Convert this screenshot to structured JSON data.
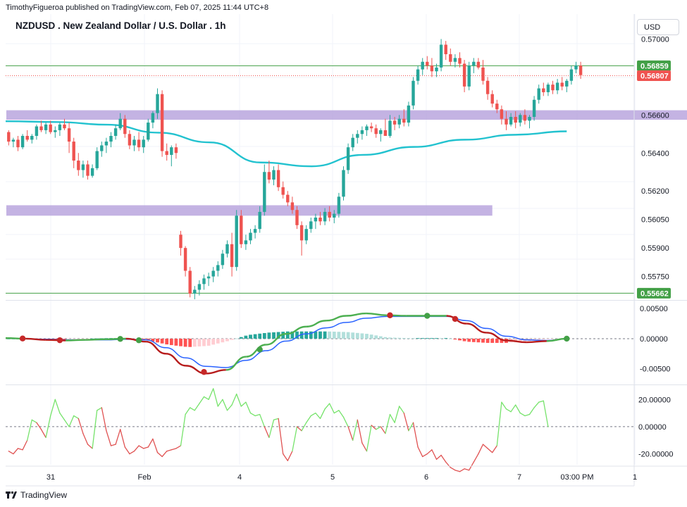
{
  "header": {
    "publisher": "TimothyFigueroa published on TradingView.com, Feb 07, 2025 11:44 UTC+8",
    "symbol_title": "NZDUSD . New Zealand Dollar / U.S. Dollar . 1h",
    "currency": "USD"
  },
  "footer": {
    "brand": "TradingView"
  },
  "colors": {
    "up": "#26a69a",
    "down": "#ef5350",
    "ma": "#22c2cf",
    "zone": "#b39ddb",
    "green_line": "#43a047",
    "red_line": "#ef5350",
    "macd_fast": "#b71c1c",
    "macd_slow": "#2962ff",
    "cross_red": "#c62828",
    "cross_green": "#43a047",
    "osc_up": "#76e36b",
    "osc_down": "#e05252",
    "axis_text": "#131722"
  },
  "chart_data": [
    {
      "type": "candlestick",
      "ylim": [
        0.5563,
        0.5702
      ],
      "x_ticks": [
        "31",
        "Feb",
        "4",
        "5",
        "6",
        "7",
        "03:00 PM",
        "1"
      ],
      "y_ticks": [
        "0.57000",
        "0.56600",
        "0.56400",
        "0.56200",
        "0.56050",
        "0.55900",
        "0.55750"
      ],
      "price_labels": [
        {
          "value": 0.56859,
          "text": "0.56859",
          "color": "#43a047"
        },
        {
          "value": 0.56807,
          "text": "0.56807",
          "color": "#ef5350"
        },
        {
          "value": 0.55662,
          "text": "0.55662",
          "color": "#43a047"
        }
      ],
      "horizontal_lines": [
        {
          "value": 0.56859,
          "style": "solid",
          "color": "#43a047"
        },
        {
          "value": 0.56807,
          "style": "dotted",
          "color": "#ef5350"
        },
        {
          "value": 0.55662,
          "style": "solid",
          "color": "#43a047"
        }
      ],
      "zones": [
        {
          "top": 0.56625,
          "bottom": 0.56575,
          "x_start": 0,
          "x_end": 157
        },
        {
          "top": 0.56125,
          "bottom": 0.5607,
          "x_start": 0,
          "x_end": 104
        }
      ],
      "moving_average": [
        0.56567,
        0.56563,
        0.56549,
        0.56507,
        0.56456,
        0.5635,
        0.5633,
        0.5639,
        0.56432,
        0.5647,
        0.56496,
        0.56514
      ],
      "candles": [
        [
          0.5651,
          0.5652,
          0.5644,
          0.5646
        ],
        [
          0.5646,
          0.5648,
          0.5643,
          0.5647
        ],
        [
          0.5647,
          0.5649,
          0.5641,
          0.5643
        ],
        [
          0.5643,
          0.565,
          0.5642,
          0.5649
        ],
        [
          0.5649,
          0.5652,
          0.5646,
          0.5647
        ],
        [
          0.5647,
          0.565,
          0.5645,
          0.5649
        ],
        [
          0.5649,
          0.5655,
          0.5647,
          0.5654
        ],
        [
          0.5654,
          0.5657,
          0.5651,
          0.5652
        ],
        [
          0.5652,
          0.5656,
          0.565,
          0.5655
        ],
        [
          0.5655,
          0.5657,
          0.565,
          0.5651
        ],
        [
          0.5651,
          0.5654,
          0.5648,
          0.5652
        ],
        [
          0.5652,
          0.5656,
          0.5649,
          0.5655
        ],
        [
          0.5655,
          0.5658,
          0.5652,
          0.5653
        ],
        [
          0.5653,
          0.5656,
          0.564,
          0.5646
        ],
        [
          0.5646,
          0.5648,
          0.5632,
          0.5636
        ],
        [
          0.5636,
          0.564,
          0.5628,
          0.5631
        ],
        [
          0.5631,
          0.5636,
          0.5627,
          0.5634
        ],
        [
          0.5634,
          0.5636,
          0.5626,
          0.5628
        ],
        [
          0.5628,
          0.5634,
          0.5627,
          0.5632
        ],
        [
          0.5632,
          0.5643,
          0.5631,
          0.5641
        ],
        [
          0.5641,
          0.5646,
          0.5638,
          0.5644
        ],
        [
          0.5644,
          0.5648,
          0.564,
          0.5646
        ],
        [
          0.5646,
          0.5651,
          0.5643,
          0.5649
        ],
        [
          0.5649,
          0.5655,
          0.5647,
          0.5653
        ],
        [
          0.5653,
          0.5661,
          0.5652,
          0.5658
        ],
        [
          0.5658,
          0.566,
          0.5648,
          0.565
        ],
        [
          0.565,
          0.5652,
          0.5642,
          0.5644
        ],
        [
          0.5644,
          0.5649,
          0.5641,
          0.5647
        ],
        [
          0.5647,
          0.5651,
          0.5641,
          0.5643
        ],
        [
          0.5643,
          0.5649,
          0.564,
          0.5647
        ],
        [
          0.5647,
          0.5658,
          0.5646,
          0.5656
        ],
        [
          0.5656,
          0.5662,
          0.5653,
          0.5661
        ],
        [
          0.5661,
          0.5674,
          0.5658,
          0.5671
        ],
        [
          0.5671,
          0.5673,
          0.5638,
          0.5641
        ],
        [
          0.5641,
          0.5645,
          0.5636,
          0.5639
        ],
        [
          0.5639,
          0.5644,
          0.5633,
          0.5643
        ],
        [
          0.5643,
          0.5645,
          0.5637,
          0.564
        ],
        [
          0.5597,
          0.5599,
          0.5586,
          0.559
        ],
        [
          0.559,
          0.5591,
          0.5575,
          0.5578
        ],
        [
          0.5578,
          0.558,
          0.5564,
          0.5566
        ],
        [
          0.5566,
          0.557,
          0.5562,
          0.5568
        ],
        [
          0.5568,
          0.5573,
          0.5565,
          0.5571
        ],
        [
          0.5571,
          0.5576,
          0.5568,
          0.5574
        ],
        [
          0.5574,
          0.5577,
          0.557,
          0.5575
        ],
        [
          0.5575,
          0.558,
          0.5572,
          0.5578
        ],
        [
          0.5578,
          0.5583,
          0.5575,
          0.5581
        ],
        [
          0.5581,
          0.5589,
          0.5579,
          0.5587
        ],
        [
          0.5587,
          0.5594,
          0.5585,
          0.5592
        ],
        [
          0.5592,
          0.5598,
          0.5575,
          0.558
        ],
        [
          0.558,
          0.561,
          0.5578,
          0.5607
        ],
        [
          0.5607,
          0.561,
          0.559,
          0.5592
        ],
        [
          0.5592,
          0.5597,
          0.5589,
          0.5594
        ],
        [
          0.5594,
          0.56,
          0.5592,
          0.5598
        ],
        [
          0.5598,
          0.5602,
          0.5595,
          0.56
        ],
        [
          0.56,
          0.5612,
          0.5598,
          0.5609
        ],
        [
          0.5609,
          0.5634,
          0.5607,
          0.563
        ],
        [
          0.563,
          0.5636,
          0.5624,
          0.5626
        ],
        [
          0.5626,
          0.5633,
          0.5623,
          0.5631
        ],
        [
          0.5631,
          0.5634,
          0.562,
          0.5622
        ],
        [
          0.5622,
          0.5625,
          0.5616,
          0.5618
        ],
        [
          0.5618,
          0.562,
          0.5612,
          0.5614
        ],
        [
          0.5614,
          0.5617,
          0.5608,
          0.561
        ],
        [
          0.561,
          0.5612,
          0.56,
          0.5602
        ],
        [
          0.5602,
          0.5604,
          0.5586,
          0.5594
        ],
        [
          0.5594,
          0.5602,
          0.5592,
          0.56
        ],
        [
          0.56,
          0.5606,
          0.5598,
          0.5604
        ],
        [
          0.5604,
          0.5608,
          0.56,
          0.5606
        ],
        [
          0.5606,
          0.5609,
          0.5602,
          0.5604
        ],
        [
          0.5604,
          0.5611,
          0.5602,
          0.5609
        ],
        [
          0.5609,
          0.5612,
          0.5604,
          0.5606
        ],
        [
          0.5606,
          0.561,
          0.5603,
          0.5608
        ],
        [
          0.5608,
          0.5619,
          0.5606,
          0.5617
        ],
        [
          0.5617,
          0.5633,
          0.5615,
          0.5631
        ],
        [
          0.5631,
          0.5645,
          0.5629,
          0.5643
        ],
        [
          0.5643,
          0.565,
          0.5641,
          0.5648
        ],
        [
          0.5648,
          0.5652,
          0.5645,
          0.565
        ],
        [
          0.565,
          0.5654,
          0.5647,
          0.5652
        ],
        [
          0.5652,
          0.5655,
          0.5649,
          0.5654
        ],
        [
          0.5654,
          0.5656,
          0.5651,
          0.5653
        ],
        [
          0.5653,
          0.5655,
          0.5648,
          0.565
        ],
        [
          0.565,
          0.5653,
          0.5646,
          0.5652
        ],
        [
          0.5652,
          0.5658,
          0.565,
          0.5649
        ],
        [
          0.5649,
          0.566,
          0.5648,
          0.5657
        ],
        [
          0.5657,
          0.5659,
          0.5652,
          0.5655
        ],
        [
          0.5655,
          0.566,
          0.5653,
          0.5658
        ],
        [
          0.5658,
          0.5663,
          0.5654,
          0.5656
        ],
        [
          0.5656,
          0.5667,
          0.5654,
          0.5665
        ],
        [
          0.5665,
          0.568,
          0.5663,
          0.5678
        ],
        [
          0.5678,
          0.5686,
          0.5676,
          0.5684
        ],
        [
          0.5684,
          0.569,
          0.5681,
          0.5688
        ],
        [
          0.5688,
          0.5691,
          0.5684,
          0.5686
        ],
        [
          0.5686,
          0.569,
          0.568,
          0.5683
        ],
        [
          0.5683,
          0.5687,
          0.568,
          0.5685
        ],
        [
          0.5685,
          0.57,
          0.5683,
          0.5697
        ],
        [
          0.5697,
          0.5699,
          0.5689,
          0.5692
        ],
        [
          0.5692,
          0.5695,
          0.5686,
          0.5688
        ],
        [
          0.5688,
          0.5692,
          0.5685,
          0.569
        ],
        [
          0.569,
          0.5693,
          0.5685,
          0.5687
        ],
        [
          0.5687,
          0.5689,
          0.5672,
          0.5675
        ],
        [
          0.5675,
          0.5688,
          0.5673,
          0.5686
        ],
        [
          0.5686,
          0.569,
          0.5682,
          0.5688
        ],
        [
          0.5688,
          0.569,
          0.5684,
          0.5685
        ],
        [
          0.5685,
          0.5689,
          0.5676,
          0.5678
        ],
        [
          0.5678,
          0.568,
          0.5668,
          0.5671
        ],
        [
          0.5671,
          0.5673,
          0.5664,
          0.5666
        ],
        [
          0.5666,
          0.5668,
          0.5661,
          0.5663
        ],
        [
          0.5663,
          0.5665,
          0.5655,
          0.5658
        ],
        [
          0.5658,
          0.5662,
          0.5652,
          0.5655
        ],
        [
          0.5655,
          0.5661,
          0.5654,
          0.5659
        ],
        [
          0.5659,
          0.5662,
          0.5653,
          0.5656
        ],
        [
          0.5656,
          0.5661,
          0.5654,
          0.566
        ],
        [
          0.566,
          0.5663,
          0.5655,
          0.5657
        ],
        [
          0.5657,
          0.566,
          0.5653,
          0.5659
        ],
        [
          0.5659,
          0.567,
          0.5657,
          0.5668
        ],
        [
          0.5668,
          0.5676,
          0.5666,
          0.5674
        ],
        [
          0.5674,
          0.5677,
          0.567,
          0.5672
        ],
        [
          0.5672,
          0.5677,
          0.567,
          0.5676
        ],
        [
          0.5676,
          0.5678,
          0.5671,
          0.5673
        ],
        [
          0.5673,
          0.5679,
          0.5671,
          0.5677
        ],
        [
          0.5677,
          0.568,
          0.5673,
          0.5675
        ],
        [
          0.5675,
          0.5679,
          0.5672,
          0.5678
        ],
        [
          0.5678,
          0.5686,
          0.5676,
          0.5684
        ],
        [
          0.5684,
          0.5688,
          0.5682,
          0.5686
        ],
        [
          0.5686,
          0.5688,
          0.5679,
          0.5681
        ]
      ]
    },
    {
      "type": "macd",
      "ylim": [
        -0.0075,
        0.0062
      ],
      "y_ticks": [
        "0.00500",
        "0.00000",
        "-0.00500"
      ],
      "fast": [
        0.0001,
        0.0,
        -0.0002,
        -0.0003,
        -0.0002,
        -0.0001,
        0.0,
        -0.0005,
        -0.0025,
        -0.0045,
        -0.0058,
        -0.0052,
        -0.003,
        -0.001,
        0.0008,
        0.002,
        0.003,
        0.0038,
        0.0042,
        0.0039,
        0.0038,
        0.0038,
        0.0038,
        0.0025,
        0.001,
        -0.0003,
        -0.0006,
        -0.0004,
        0.0
      ],
      "slow": [
        0.0001,
        0.0,
        -0.0001,
        -0.0002,
        -0.0002,
        -0.0002,
        -0.0001,
        -0.0002,
        -0.0015,
        -0.0032,
        -0.0046,
        -0.0048,
        -0.0036,
        -0.002,
        -0.0004,
        0.0008,
        0.0018,
        0.0027,
        0.0034,
        0.0037,
        0.0037,
        0.0037,
        0.0037,
        0.003,
        0.0017,
        0.0004,
        -0.0002,
        -0.0003,
        0.0
      ],
      "cross_red": [
        3,
        11,
        42,
        82,
        96
      ],
      "cross_green": [
        24,
        28,
        54,
        90,
        120
      ],
      "histogram": [
        0.0,
        0.0,
        -0.0001,
        -0.0001,
        0.0,
        0.0001,
        0.0001,
        -0.0003,
        -0.001,
        -0.0014,
        -0.0012,
        -0.0004,
        0.0006,
        0.001,
        0.0012,
        0.0012,
        0.0012,
        0.0011,
        0.0008,
        0.0002,
        0.0001,
        0.0001,
        0.0001,
        -0.0005,
        -0.0007,
        -0.0007,
        -0.0004,
        -0.0001,
        0.0
      ]
    },
    {
      "type": "line",
      "ylim": [
        -28,
        30
      ],
      "y_ticks": [
        "20.00000",
        "0.00000",
        "-20.00000"
      ],
      "values": [
        -18,
        -20,
        -16,
        -17,
        -10,
        5,
        3,
        -2,
        -8,
        8,
        20,
        10,
        5,
        0,
        8,
        6,
        -5,
        -13,
        -16,
        12,
        14,
        -3,
        -14,
        -13,
        -2,
        -15,
        -20,
        -18,
        -14,
        -16,
        -15,
        -9,
        -19,
        -22,
        -18,
        -17,
        -16,
        -14,
        9,
        14,
        12,
        17,
        22,
        20,
        28,
        15,
        20,
        12,
        16,
        24,
        15,
        18,
        10,
        8,
        9,
        0,
        -8,
        5,
        6,
        -20,
        -25,
        -18,
        0,
        -3,
        3,
        8,
        10,
        6,
        13,
        17,
        10,
        12,
        7,
        0,
        -10,
        5,
        -12,
        -18,
        1,
        -2,
        0,
        -5,
        9,
        3,
        15,
        10,
        -3,
        3,
        -15,
        -22,
        -20,
        -17,
        -24,
        -21,
        -26,
        -30,
        -32,
        -33,
        -31,
        -32,
        -26,
        -20,
        -13,
        -16,
        -19,
        -14,
        18,
        13,
        11,
        16,
        10,
        8,
        9,
        14,
        18,
        19,
        0
      ]
    }
  ]
}
